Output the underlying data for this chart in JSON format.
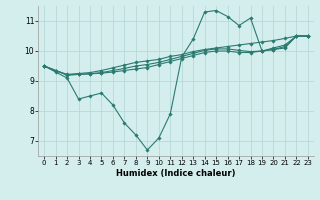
{
  "title": "",
  "xlabel": "Humidex (Indice chaleur)",
  "ylabel": "",
  "bg_color": "#d4eeee",
  "grid_color": "#b8d8d8",
  "line_color": "#2a7a70",
  "xlim": [
    -0.5,
    23.5
  ],
  "ylim": [
    6.5,
    11.5
  ],
  "yticks": [
    7,
    8,
    9,
    10,
    11
  ],
  "xticks": [
    0,
    1,
    2,
    3,
    4,
    5,
    6,
    7,
    8,
    9,
    10,
    11,
    12,
    13,
    14,
    15,
    16,
    17,
    18,
    19,
    20,
    21,
    22,
    23
  ],
  "series": [
    [
      9.5,
      9.3,
      9.1,
      8.4,
      8.5,
      8.6,
      8.2,
      7.6,
      7.2,
      6.7,
      7.1,
      7.9,
      9.8,
      10.4,
      11.3,
      11.35,
      11.15,
      10.85,
      11.1,
      10.0,
      10.1,
      10.2,
      10.5,
      10.5
    ],
    [
      9.5,
      9.35,
      9.2,
      9.22,
      9.24,
      9.26,
      9.3,
      9.35,
      9.4,
      9.45,
      9.55,
      9.65,
      9.75,
      9.85,
      9.95,
      10.0,
      10.0,
      9.95,
      9.95,
      10.0,
      10.05,
      10.1,
      10.5,
      10.5
    ],
    [
      9.5,
      9.35,
      9.2,
      9.22,
      9.24,
      9.28,
      9.35,
      9.42,
      9.5,
      9.55,
      9.62,
      9.72,
      9.82,
      9.92,
      10.02,
      10.07,
      10.07,
      10.02,
      9.98,
      10.0,
      10.05,
      10.15,
      10.5,
      10.5
    ],
    [
      9.5,
      9.35,
      9.22,
      9.25,
      9.28,
      9.35,
      9.44,
      9.53,
      9.62,
      9.67,
      9.72,
      9.82,
      9.88,
      9.98,
      10.05,
      10.1,
      10.15,
      10.2,
      10.25,
      10.3,
      10.35,
      10.42,
      10.5,
      10.5
    ]
  ]
}
